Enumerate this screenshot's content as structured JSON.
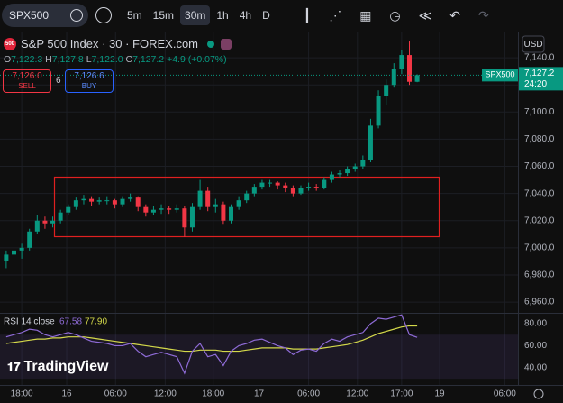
{
  "toolbar": {
    "symbol": "SPX500",
    "intervals": [
      "5m",
      "15m",
      "30m",
      "1h",
      "4h",
      "D"
    ],
    "active_interval": 2
  },
  "legend": {
    "title": "S&P 500 Index · 30 · FOREX.com",
    "logo": "500",
    "ohlc": [
      {
        "key": "O",
        "value": "7,122.3"
      },
      {
        "key": "H",
        "value": "7,127.8"
      },
      {
        "key": "L",
        "value": "7,122.0"
      },
      {
        "key": "C",
        "value": "7,127.2"
      }
    ],
    "change": "+4.9 (+0.07%)"
  },
  "trade": {
    "sell_price": "7,126.0",
    "sell": "SELL",
    "spread": "6",
    "buy_price": "7,126.6",
    "buy": "BUY"
  },
  "price_axis": {
    "currency": "USD",
    "tag_symbol": "SPX500",
    "tag_price": "7,127.2",
    "tag_timer": "24:20"
  },
  "logo": "TradingView",
  "chart_data": {
    "type": "candlestick",
    "colors": {
      "up": "#089981",
      "down": "#f23645"
    },
    "candles": [
      [
        6990,
        6998,
        6985,
        6995
      ],
      [
        6995,
        7000,
        6990,
        6998
      ],
      [
        6998,
        7003,
        6992,
        7000
      ],
      [
        7000,
        7014,
        6998,
        7012
      ],
      [
        7012,
        7024,
        7010,
        7020
      ],
      [
        7020,
        7023,
        7014,
        7018
      ],
      [
        7018,
        7023,
        7015,
        7020
      ],
      [
        7020,
        7028,
        7018,
        7026
      ],
      [
        7026,
        7032,
        7024,
        7030
      ],
      [
        7030,
        7037,
        7028,
        7035
      ],
      [
        7035,
        7039,
        7032,
        7036
      ],
      [
        7036,
        7038,
        7031,
        7034
      ],
      [
        7034,
        7037,
        7032,
        7035
      ],
      [
        7035,
        7038,
        7032,
        7035
      ],
      [
        7035,
        7036,
        7029,
        7032
      ],
      [
        7032,
        7038,
        7030,
        7036
      ],
      [
        7036,
        7040,
        7034,
        7037
      ],
      [
        7037,
        7038,
        7027,
        7030
      ],
      [
        7030,
        7032,
        7023,
        7026
      ],
      [
        7026,
        7031,
        7024,
        7028
      ],
      [
        7028,
        7032,
        7025,
        7029
      ],
      [
        7029,
        7031,
        7025,
        7028
      ],
      [
        7028,
        7032,
        7026,
        7029
      ],
      [
        7029,
        7031,
        7008,
        7015
      ],
      [
        7015,
        7033,
        7012,
        7030
      ],
      [
        7030,
        7050,
        7028,
        7042
      ],
      [
        7042,
        7045,
        7027,
        7030
      ],
      [
        7030,
        7036,
        7026,
        7032
      ],
      [
        7032,
        7034,
        7017,
        7020
      ],
      [
        7020,
        7032,
        7018,
        7030
      ],
      [
        7030,
        7038,
        7028,
        7035
      ],
      [
        7035,
        7042,
        7033,
        7040
      ],
      [
        7040,
        7047,
        7038,
        7045
      ],
      [
        7045,
        7050,
        7043,
        7048
      ],
      [
        7048,
        7050,
        7045,
        7048
      ],
      [
        7048,
        7049,
        7043,
        7046
      ],
      [
        7046,
        7048,
        7041,
        7044
      ],
      [
        7044,
        7046,
        7038,
        7040
      ],
      [
        7040,
        7046,
        7039,
        7044
      ],
      [
        7044,
        7048,
        7042,
        7045
      ],
      [
        7045,
        7047,
        7042,
        7044
      ],
      [
        7044,
        7052,
        7043,
        7050
      ],
      [
        7050,
        7056,
        7048,
        7054
      ],
      [
        7054,
        7057,
        7052,
        7055
      ],
      [
        7055,
        7060,
        7053,
        7058
      ],
      [
        7058,
        7062,
        7056,
        7060
      ],
      [
        7060,
        7068,
        7058,
        7065
      ],
      [
        7065,
        7095,
        7063,
        7090
      ],
      [
        7090,
        7116,
        7088,
        7112
      ],
      [
        7112,
        7124,
        7105,
        7120
      ],
      [
        7120,
        7136,
        7118,
        7132
      ],
      [
        7132,
        7146,
        7128,
        7142
      ],
      [
        7142,
        7152,
        7120,
        7122.3
      ],
      [
        7122.3,
        7127.8,
        7122.0,
        7127.2
      ]
    ],
    "xlim": [
      -0.8,
      66
    ],
    "xticks": [
      {
        "value": 2,
        "label": "18:00"
      },
      {
        "value": 7.8,
        "label": "16"
      },
      {
        "value": 14.1,
        "label": "06:00"
      },
      {
        "value": 20.5,
        "label": "12:00"
      },
      {
        "value": 26.7,
        "label": "18:00"
      },
      {
        "value": 32.6,
        "label": "17"
      },
      {
        "value": 39,
        "label": "06:00"
      },
      {
        "value": 45.3,
        "label": "12:00"
      },
      {
        "value": 51,
        "label": "17:00"
      },
      {
        "value": 55.9,
        "label": "19"
      },
      {
        "value": 64.3,
        "label": "06:00"
      }
    ],
    "ylim": [
      6953.4,
      7156
    ],
    "yticks": [
      {
        "value": 6960,
        "label": "6,960.0"
      },
      {
        "value": 6980,
        "label": "6,980.0"
      },
      {
        "value": 7000,
        "label": "7,000.0"
      },
      {
        "value": 7020,
        "label": "7,020.0"
      },
      {
        "value": 7040,
        "label": "7,040.0"
      },
      {
        "value": 7060,
        "label": "7,060.0"
      },
      {
        "value": 7080,
        "label": "7,080.0"
      },
      {
        "value": 7100,
        "label": "7,100.0"
      },
      {
        "value": 7120,
        "label": "7,120.0"
      },
      {
        "value": 7140,
        "label": "7,140.0"
      }
    ],
    "grid": true,
    "rsi": {
      "title": "RSI 14 close",
      "color": "#8e6bd6",
      "ma_color": "#d4d94a",
      "values": [
        68,
        70,
        72,
        75,
        74,
        70,
        68,
        70,
        72,
        70,
        67,
        64,
        63,
        62,
        60,
        60,
        62,
        55,
        50,
        52,
        54,
        52,
        50,
        35,
        55,
        62,
        50,
        52,
        42,
        55,
        60,
        62,
        65,
        66,
        63,
        60,
        58,
        52,
        56,
        57,
        55,
        62,
        66,
        64,
        68,
        70,
        72,
        80,
        85,
        84,
        86,
        88,
        70,
        67.58
      ],
      "ma": [
        62,
        63,
        64,
        65,
        66,
        66,
        67,
        67,
        68,
        68,
        68,
        67,
        66,
        65,
        64,
        63,
        62,
        61,
        60,
        59,
        58,
        57,
        56,
        55,
        55,
        56,
        56,
        56,
        55,
        55,
        55,
        56,
        57,
        58,
        58,
        58,
        58,
        57,
        57,
        57,
        57,
        58,
        59,
        60,
        61,
        63,
        65,
        68,
        71,
        73,
        75,
        77,
        78,
        77.9
      ],
      "ma_label": "77.90",
      "ylim": [
        26,
        89
      ],
      "yticks": [
        {
          "value": 40,
          "label": "40.00"
        },
        {
          "value": 60,
          "label": "60.00"
        },
        {
          "value": 80,
          "label": "80.00"
        }
      ]
    }
  }
}
